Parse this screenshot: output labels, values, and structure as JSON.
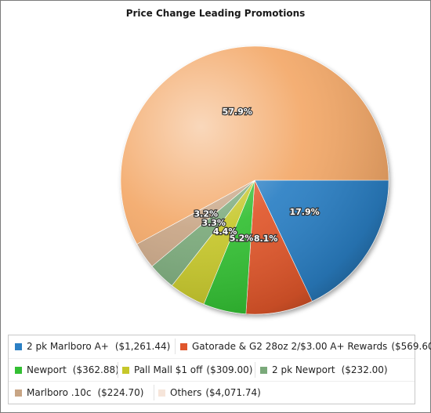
{
  "chart_data": {
    "type": "pie",
    "title": "Price Change Leading Promotions",
    "slices": [
      {
        "label": "2 pk Marlboro A+",
        "value_text": "($1,261.44)",
        "value": 1261.44,
        "percent_label": "17.9%",
        "color": "#2b7fc4"
      },
      {
        "label": "Gatorade & G2 28oz 2/$3.00 A+ Rewards",
        "value_text": "($569.60)",
        "value": 569.6,
        "percent_label": "8.1%",
        "color": "#e0562c"
      },
      {
        "label": "Newport",
        "value_text": "($362.88)",
        "value": 362.88,
        "percent_label": "5.2%",
        "color": "#33bf33"
      },
      {
        "label": "Pall Mall $1 off",
        "value_text": "($309.00)",
        "value": 309.0,
        "percent_label": "4.4%",
        "color": "#c6c72a"
      },
      {
        "label": "2 pk Newport",
        "value_text": "($232.00)",
        "value": 232.0,
        "percent_label": "3.3%",
        "color": "#7aa97a"
      },
      {
        "label": "Marlboro .10c",
        "value_text": "($224.70)",
        "value": 224.7,
        "percent_label": "3.2%",
        "color": "#c8a585"
      },
      {
        "label": "Others",
        "value_text": "($4,071.74)",
        "value": 4071.74,
        "percent_label": "57.9%",
        "color": "#f3a867",
        "legend_color": "#f6e5da"
      }
    ],
    "start_angle_deg": 0,
    "direction": "clockwise",
    "legend_position": "bottom"
  }
}
